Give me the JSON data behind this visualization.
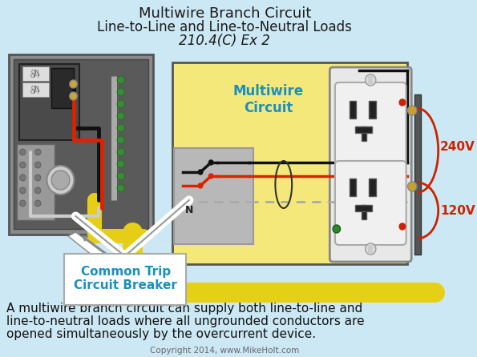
{
  "bg_color": "#cce8f4",
  "title_line1": "Multiwire Branch Circuit",
  "title_line2": "Line-to-Line and Line-to-Neutral Loads",
  "title_line3": "210.4(C) Ex 2",
  "title_color": "#1a1a1a",
  "title_fs1": 13,
  "title_fs2": 12,
  "title_fs3": 12,
  "body_text_1": "A multiwire branch circuit can supply both line-to-line and",
  "body_text_2": "line-to-neutral loads where all ungrounded conductors are",
  "body_text_3": "opened simultaneously by the overcurrent device.",
  "body_fontsize": 11,
  "copyright_text": "Copyright 2014, www.MikeHolt.com",
  "copyright_fontsize": 7.5,
  "multiwire_label": "Multiwire\nCircuit",
  "multiwire_color": "#1a8fc1",
  "common_trip_label": "Common Trip\nCircuit Breaker",
  "common_trip_color": "#1a8fc1",
  "v240_label": "240V",
  "v120_label": "120V",
  "voltage_color": "#cc2200",
  "panel_outer": "#8a8a8a",
  "panel_inner": "#5a5a5a",
  "panel_dark": "#3a3a3a",
  "yellow_bg": "#f5e87a",
  "gray_box": "#b8b8b8",
  "wire_black": "#111111",
  "wire_red": "#dd2200",
  "wire_white_dash": "#aaaaaa",
  "wire_yellow": "#f0d820",
  "outlet_white": "#e8e8e8",
  "outlet_gray": "#c0c0c0",
  "outlet_dark": "#333333",
  "green_screw": "#3a8a3a"
}
